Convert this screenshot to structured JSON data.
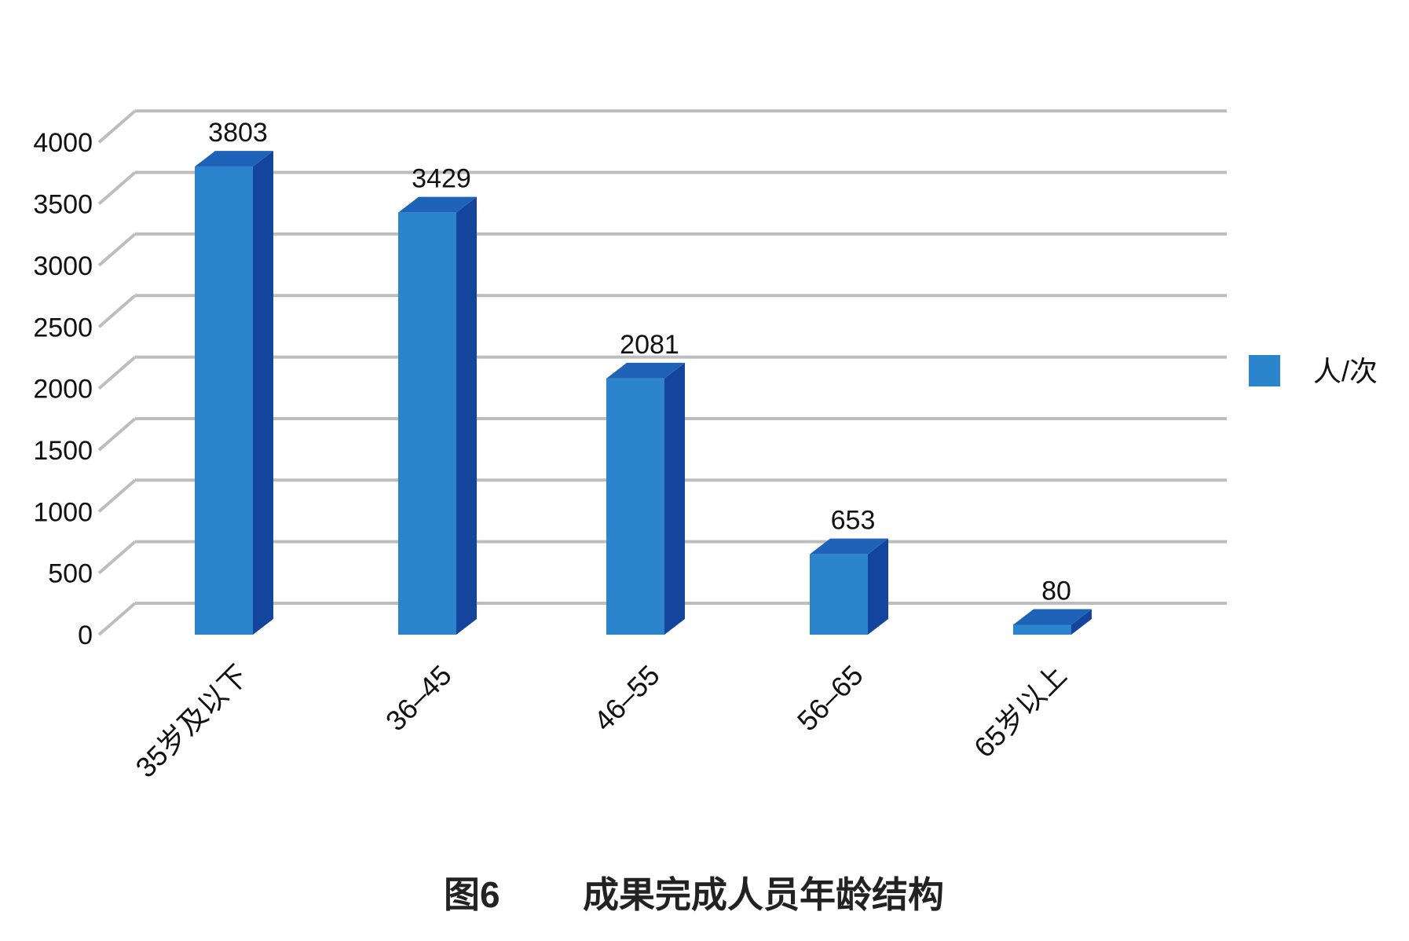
{
  "chart_data": {
    "type": "bar",
    "categories": [
      "35岁及以下",
      "36–45",
      "46–55",
      "56–65",
      "65岁以上"
    ],
    "series": [
      {
        "name": "人/次",
        "values": [
          3803,
          3429,
          2081,
          653,
          80
        ]
      }
    ],
    "data_labels": [
      "3803",
      "3429",
      "2081",
      "653",
      "80"
    ],
    "yticks": [
      "0",
      "500",
      "1000",
      "1500",
      "2000",
      "2500",
      "3000",
      "3500",
      "4000"
    ],
    "ylim": [
      0,
      4000
    ],
    "grid": true,
    "legend_position": "right",
    "style": "3d-bar",
    "colors": {
      "bar_front": "#2b84cc",
      "bar_side": "#13459c",
      "bar_top": "#1e63b8",
      "grid": "#bdbdbd",
      "legend_swatch": "#2b84cc"
    }
  },
  "caption": {
    "figure_number": "图6",
    "title": "成果完成人员年龄结构"
  }
}
